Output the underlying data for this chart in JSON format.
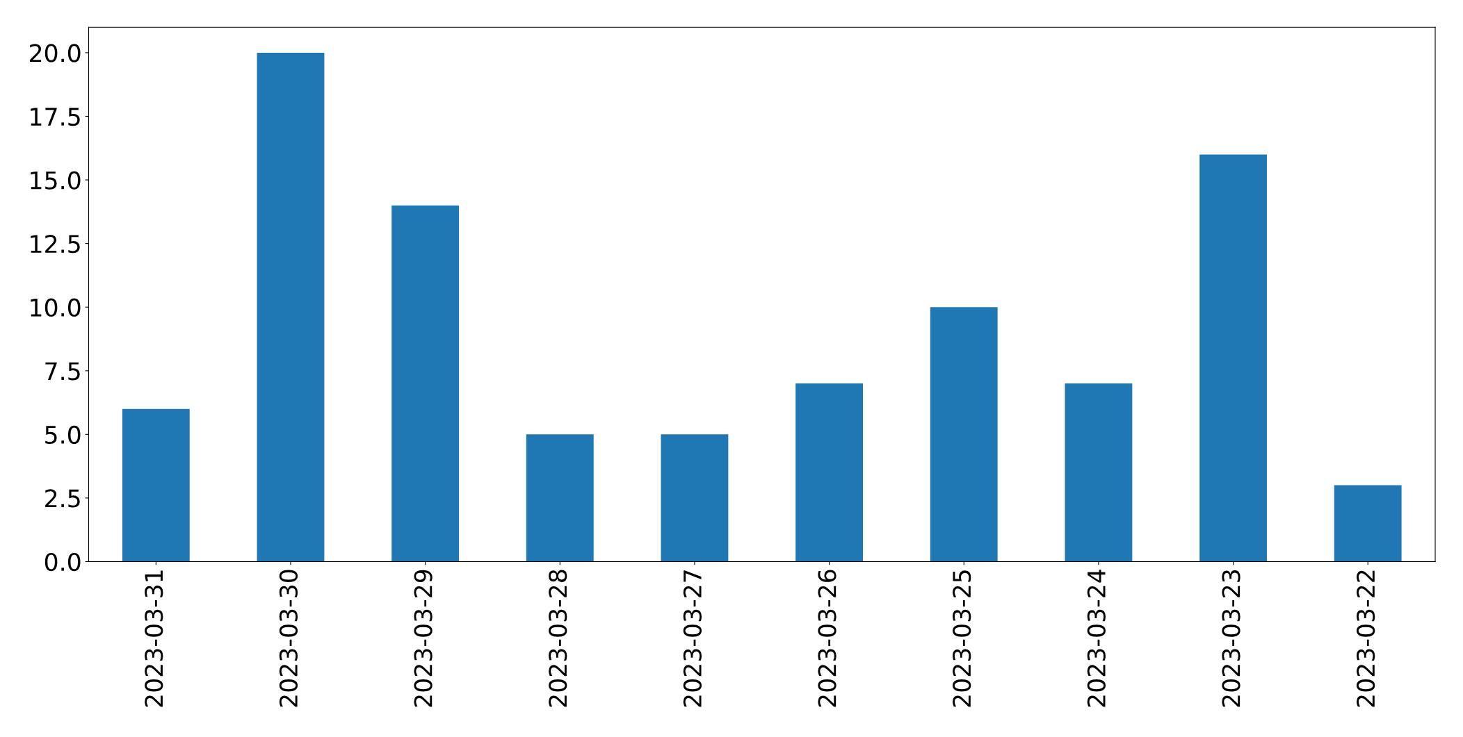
{
  "chart_data": {
    "type": "bar",
    "categories": [
      "2023-03-31",
      "2023-03-30",
      "2023-03-29",
      "2023-03-28",
      "2023-03-27",
      "2023-03-26",
      "2023-03-25",
      "2023-03-24",
      "2023-03-23",
      "2023-03-22"
    ],
    "values": [
      6,
      20,
      14,
      5,
      5,
      7,
      10,
      7,
      16,
      3
    ],
    "color": "#1f77b4",
    "ylim": [
      0,
      21
    ],
    "yticks": [
      {
        "value": 0,
        "label": "0.0"
      },
      {
        "value": 2.5,
        "label": "2.5"
      },
      {
        "value": 5,
        "label": "5.0"
      },
      {
        "value": 7.5,
        "label": "7.5"
      },
      {
        "value": 10,
        "label": "10.0"
      },
      {
        "value": 12.5,
        "label": "12.5"
      },
      {
        "value": 15,
        "label": "15.0"
      },
      {
        "value": 17.5,
        "label": "17.5"
      },
      {
        "value": 20,
        "label": "20.0"
      }
    ],
    "grid": false
  }
}
